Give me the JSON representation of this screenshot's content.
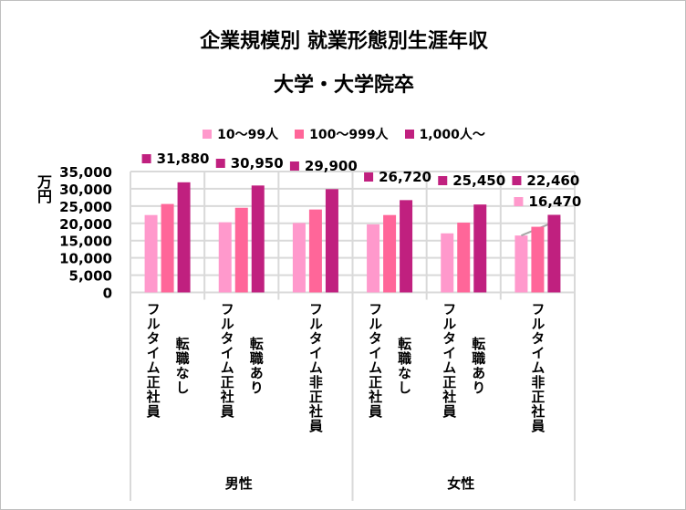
{
  "chart_data": {
    "type": "bar",
    "title": "企業規模別 就業形態別生涯年収",
    "subtitle": "大学・大学院卒",
    "ylabel": "万円",
    "ylim": [
      0,
      35000
    ],
    "yticks": [
      "0",
      "5,000",
      "10,000",
      "15,000",
      "20,000",
      "25,000",
      "30,000",
      "35,000"
    ],
    "grid": true,
    "legend_position": "top",
    "categories": [
      {
        "group": "男性",
        "lines": [
          "フルタイム正社員",
          "転職なし"
        ]
      },
      {
        "group": "男性",
        "lines": [
          "フルタイム正社員",
          "転職あり"
        ]
      },
      {
        "group": "男性",
        "lines": [
          "フルタイム非正社員"
        ]
      },
      {
        "group": "女性",
        "lines": [
          "フルタイム正社員",
          "転職なし"
        ]
      },
      {
        "group": "女性",
        "lines": [
          "フルタイム正社員",
          "転職あり"
        ]
      },
      {
        "group": "女性",
        "lines": [
          "フルタイム非正社員"
        ]
      }
    ],
    "groups": [
      "男性",
      "女性"
    ],
    "series": [
      {
        "name": "10～99人",
        "color": "#ff99cc",
        "values": [
          22400,
          20300,
          20100,
          19700,
          17100,
          16470
        ],
        "labels": [
          null,
          null,
          null,
          null,
          null,
          "16,470"
        ]
      },
      {
        "name": "100～999人",
        "color": "#ff6699",
        "values": [
          25600,
          24500,
          24000,
          22400,
          20200,
          19000
        ],
        "labels": [
          null,
          null,
          null,
          null,
          null,
          null
        ]
      },
      {
        "name": "1,000人～",
        "color": "#c0207f",
        "values": [
          31880,
          30950,
          29900,
          26720,
          25450,
          22460
        ],
        "labels": [
          "31,880",
          "30,950",
          "29,900",
          "26,720",
          "25,450",
          "22,460"
        ]
      }
    ]
  }
}
